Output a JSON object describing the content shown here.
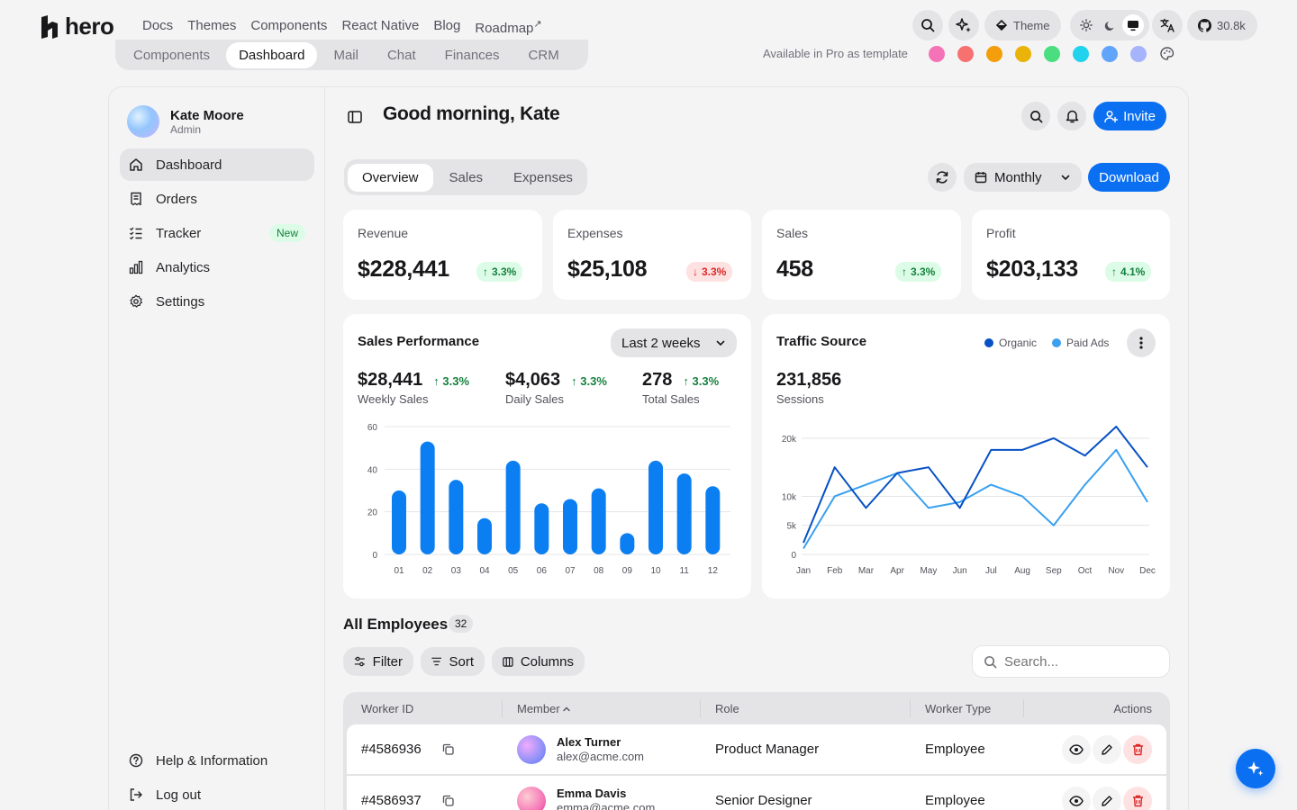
{
  "topnav": {
    "logo": "hero",
    "links": [
      "Docs",
      "Themes",
      "Components",
      "React Native",
      "Blog",
      "Roadmap"
    ],
    "roadmap_sup": "↗",
    "theme_label": "Theme",
    "github_stars": "30.8k"
  },
  "template_tabs": [
    "Components",
    "Dashboard",
    "Mail",
    "Chat",
    "Finances",
    "CRM"
  ],
  "pro_label": "Available in Pro as template",
  "swatches": [
    "#f472b6",
    "#f87171",
    "#f59e0b",
    "#eab308",
    "#4ade80",
    "#22d3ee",
    "#60a5fa",
    "#a5b4fc"
  ],
  "user": {
    "name": "Kate Moore",
    "role": "Admin"
  },
  "sidebar": {
    "items": [
      {
        "label": "Dashboard",
        "icon": "home-icon"
      },
      {
        "label": "Orders",
        "icon": "receipt-icon"
      },
      {
        "label": "Tracker",
        "icon": "list-check-icon",
        "badge": "New"
      },
      {
        "label": "Analytics",
        "icon": "bar-chart-icon"
      },
      {
        "label": "Settings",
        "icon": "gear-icon"
      }
    ],
    "help": "Help & Information",
    "logout": "Log out"
  },
  "header": {
    "greeting": "Good morning, Kate",
    "invite": "Invite"
  },
  "view_tabs": [
    "Overview",
    "Sales",
    "Expenses"
  ],
  "period": "Monthly",
  "download": "Download",
  "kpis": [
    {
      "title": "Revenue",
      "value": "$228,441",
      "change": "3.3%",
      "dir": "up"
    },
    {
      "title": "Expenses",
      "value": "$25,108",
      "change": "3.3%",
      "dir": "down"
    },
    {
      "title": "Sales",
      "value": "458",
      "change": "3.3%",
      "dir": "up"
    },
    {
      "title": "Profit",
      "value": "$203,133",
      "change": "4.1%",
      "dir": "up"
    }
  ],
  "sales_perf": {
    "title": "Sales Performance",
    "range": "Last 2 weeks",
    "stats": [
      {
        "value": "$28,441",
        "change": "3.3%",
        "label": "Weekly Sales"
      },
      {
        "value": "$4,063",
        "change": "3.3%",
        "label": "Daily Sales"
      },
      {
        "value": "278",
        "change": "3.3%",
        "label": "Total Sales"
      }
    ]
  },
  "traffic": {
    "title": "Traffic Source",
    "legend": [
      "Organic",
      "Paid Ads"
    ],
    "sessions_value": "231,856",
    "sessions_label": "Sessions"
  },
  "chart_data": [
    {
      "type": "bar",
      "categories": [
        "01",
        "02",
        "03",
        "04",
        "05",
        "06",
        "07",
        "08",
        "09",
        "10",
        "11",
        "12"
      ],
      "values": [
        30,
        53,
        35,
        17,
        44,
        24,
        26,
        31,
        10,
        44,
        38,
        32
      ],
      "ylim": [
        0,
        60
      ],
      "yticks": [
        0,
        20,
        40,
        60
      ],
      "color": "#0b7ff2"
    },
    {
      "type": "line",
      "categories": [
        "Jan",
        "Feb",
        "Mar",
        "Apr",
        "May",
        "Jun",
        "Jul",
        "Aug",
        "Sep",
        "Oct",
        "Nov",
        "Dec"
      ],
      "yticks": [
        0,
        5000,
        10000,
        20000
      ],
      "ytick_labels": [
        "0",
        "5k",
        "10k",
        "20k"
      ],
      "ylim": [
        0,
        22000
      ],
      "series": [
        {
          "name": "Organic",
          "color": "#0751c4",
          "values": [
            2000,
            15000,
            8000,
            14000,
            15000,
            8000,
            18000,
            18000,
            20000,
            17000,
            22000,
            15000
          ]
        },
        {
          "name": "Paid Ads",
          "color": "#3aa0f0",
          "values": [
            1000,
            10000,
            12000,
            14000,
            8000,
            9000,
            12000,
            10000,
            5000,
            12000,
            18000,
            9000
          ]
        }
      ],
      "grid": true
    }
  ],
  "employees": {
    "title": "All Employees",
    "count": "32",
    "filter": "Filter",
    "sort": "Sort",
    "columns": "Columns",
    "search_placeholder": "Search...",
    "headers": [
      "Worker ID",
      "Member",
      "Role",
      "Worker Type",
      "Actions"
    ],
    "rows": [
      {
        "id": "#4586936",
        "name": "Alex Turner",
        "email": "alex@acme.com",
        "role": "Product Manager",
        "type": "Employee"
      },
      {
        "id": "#4586937",
        "name": "Emma Davis",
        "email": "emma@acme.com",
        "role": "Senior Designer",
        "type": "Employee"
      }
    ]
  }
}
